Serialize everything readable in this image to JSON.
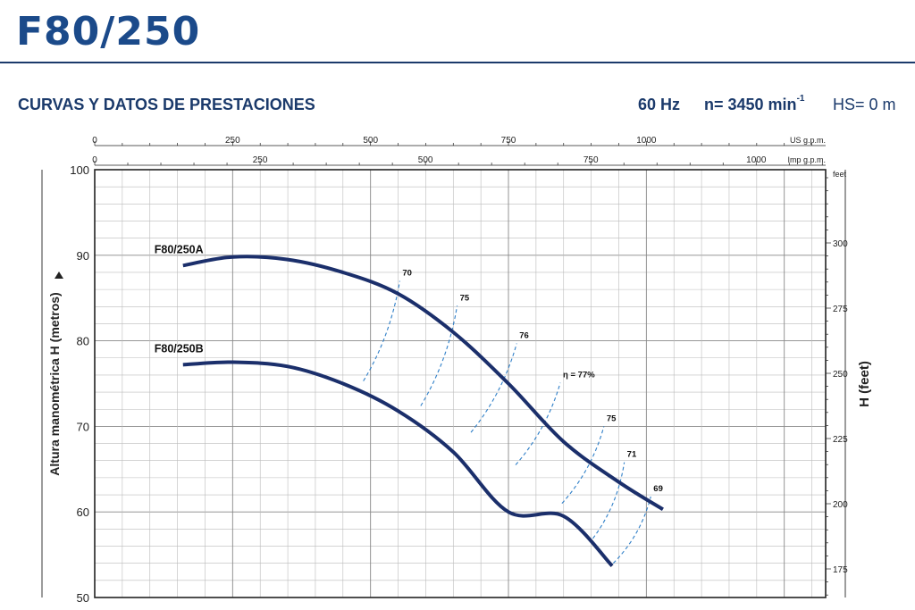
{
  "header": {
    "model": "F80/250",
    "section": "CURVAS Y DATOS DE PRESTACIONES",
    "frequency": "60 Hz",
    "speed_label": "n= 3450 min",
    "speed_exp": "-1",
    "suction": "HS= 0 m"
  },
  "colors": {
    "curve": "#1b2f6b",
    "iso": "#2f7fc8",
    "grid": "#bbbbbb",
    "text": "#1b3a6b"
  },
  "chart_data": {
    "type": "line",
    "ylabel": "Altura manométrica H  (metros)",
    "ylim": [
      50,
      100
    ],
    "yticks": [
      50,
      60,
      70,
      80,
      90,
      100
    ],
    "y2label": "H (feet)",
    "y2unit": "feet",
    "y2ticks": [
      175,
      200,
      225,
      250,
      275,
      300
    ],
    "x_us": {
      "label": "US g.p.m.",
      "lim": [
        0,
        1325
      ],
      "ticks": [
        0,
        250,
        500,
        750,
        1000
      ]
    },
    "x_imp": {
      "label": "Imp g.p.m.",
      "lim": [
        0,
        1105
      ],
      "ticks": [
        0,
        250,
        500,
        750,
        1000
      ]
    },
    "series": [
      {
        "name": "F80/250A",
        "x": [
          160,
          250,
          350,
          450,
          550,
          650,
          750,
          850,
          950,
          1030
        ],
        "y": [
          88.8,
          89.8,
          89.5,
          88.0,
          85.5,
          81.0,
          75.0,
          68.2,
          63.5,
          60.3
        ]
      },
      {
        "name": "F80/250B",
        "x": [
          160,
          250,
          350,
          450,
          550,
          650,
          750,
          850,
          938
        ],
        "y": [
          77.2,
          77.5,
          77.0,
          75.0,
          71.8,
          67.0,
          60.0,
          59.5,
          53.7
        ]
      }
    ],
    "efficiency": [
      {
        "label": "70",
        "top": [
          553,
          87.0
        ],
        "bottom": [
          487,
          75.3
        ]
      },
      {
        "label": "75",
        "top": [
          657,
          84.1
        ],
        "bottom": [
          591,
          72.4
        ]
      },
      {
        "label": "76",
        "top": [
          765,
          79.7
        ],
        "bottom": [
          682,
          69.3
        ]
      },
      {
        "label": "η = 77%",
        "top": [
          844,
          75.1
        ],
        "bottom": [
          763,
          65.5
        ]
      },
      {
        "label": "75",
        "top": [
          923,
          70.0
        ],
        "bottom": [
          847,
          61.0
        ]
      },
      {
        "label": "71",
        "top": [
          960,
          65.8
        ],
        "bottom": [
          903,
          56.9
        ]
      },
      {
        "label": "69",
        "top": [
          1008,
          61.8
        ],
        "bottom": [
          940,
          54.0
        ]
      }
    ]
  }
}
